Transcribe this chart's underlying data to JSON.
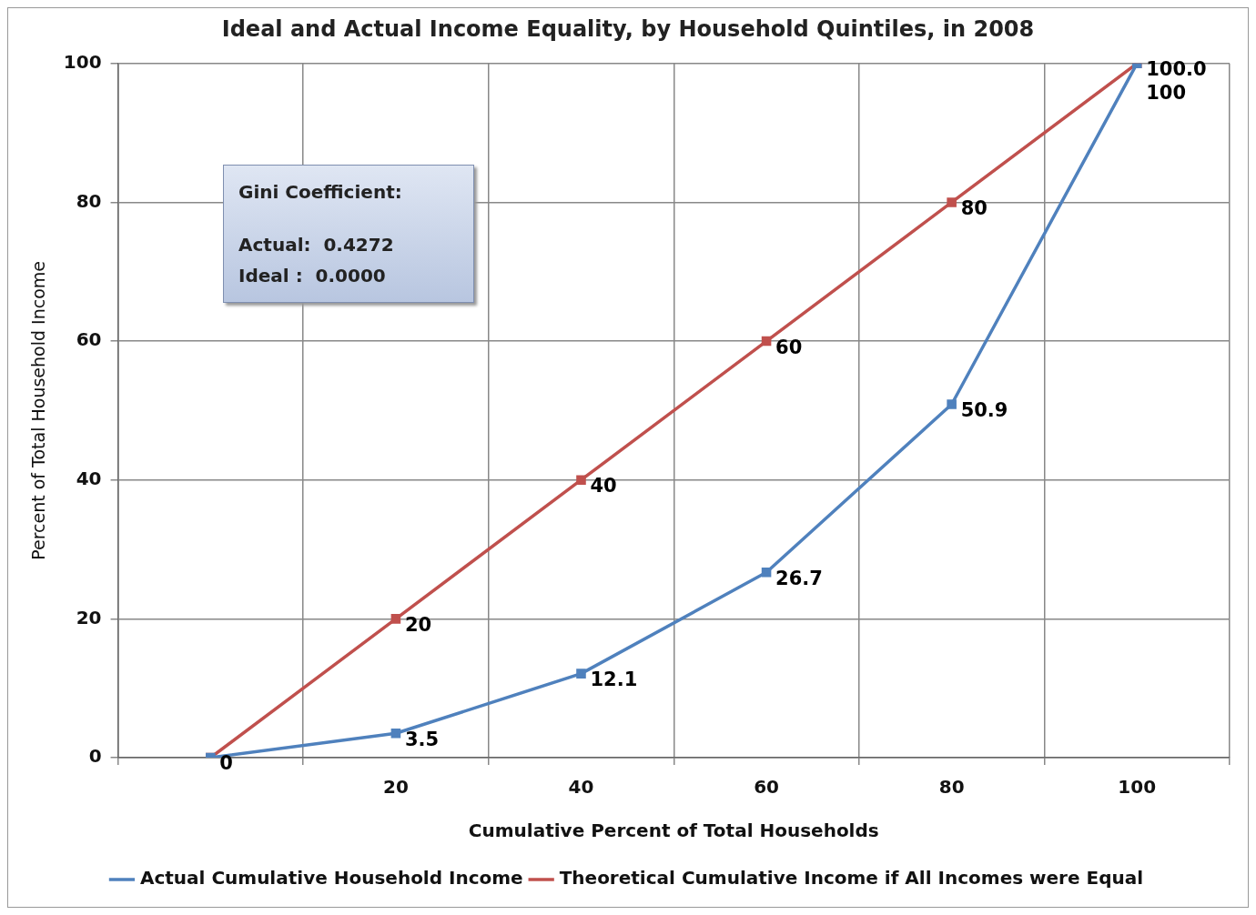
{
  "chart_data": {
    "type": "line",
    "title": "Ideal and Actual Income Equality, by Household Quintiles, in 2008",
    "xlabel": "Cumulative Percent of Total Households",
    "ylabel": "Percent of Total Household Income",
    "categories": [
      null,
      "20",
      "40",
      "60",
      "80",
      "100"
    ],
    "series": [
      {
        "name": "Actual Cumulative Household Income",
        "color": "#4f81bd",
        "values": [
          0,
          3.5,
          12.1,
          26.7,
          50.9,
          100
        ],
        "value_labels": [
          null,
          "3.5",
          "12.1",
          "26.7",
          "50.9",
          "100.0"
        ]
      },
      {
        "name": "Theoretical Cumulative Income if All Incomes were Equal",
        "color": "#c0504d",
        "values": [
          0,
          20,
          40,
          60,
          80,
          100
        ],
        "value_labels": [
          "0",
          "20",
          "40",
          "60",
          "80",
          "100"
        ]
      }
    ],
    "ylim": [
      0,
      100
    ],
    "yticks": [
      0,
      20,
      40,
      60,
      80,
      100
    ],
    "grid": true,
    "legend": "bottom",
    "marker": "square",
    "line_style": "solid",
    "annotations": [
      "Gini Coefficient:",
      "Actual:  0.4272",
      "Ideal :  0.0000"
    ]
  }
}
